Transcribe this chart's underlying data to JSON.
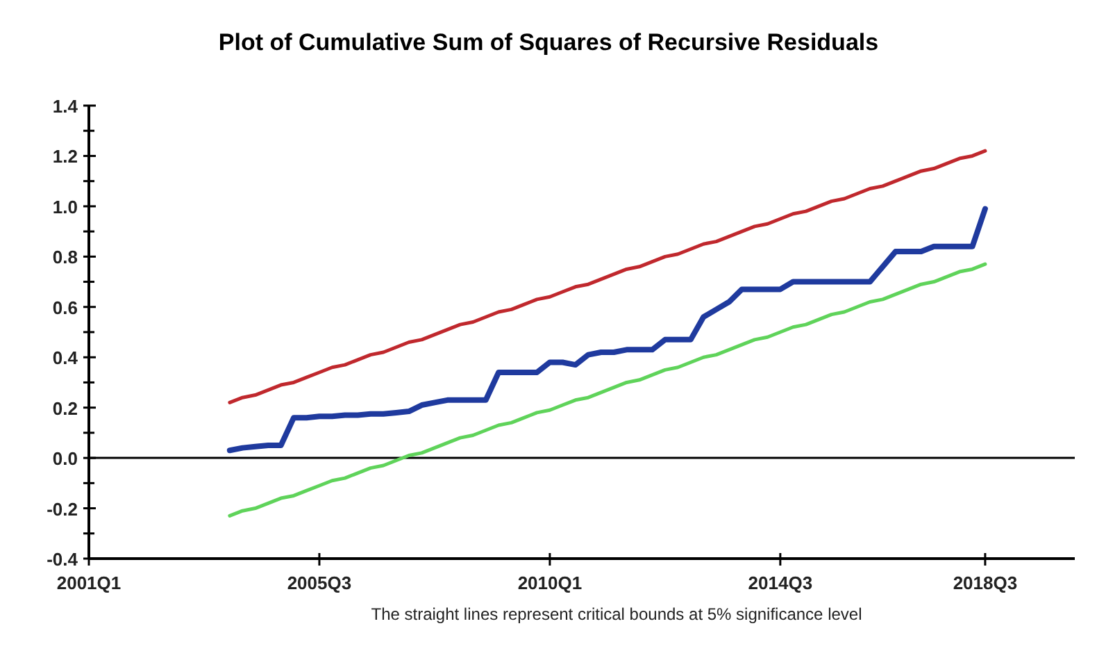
{
  "chart_data": {
    "type": "line",
    "title": "Plot of Cumulative Sum of Squares of Recursive Residuals",
    "annotations": [
      "The straight lines represent critical bounds at 5% significance level"
    ],
    "categories": [
      "2001Q1",
      null,
      null,
      null,
      null,
      null,
      null,
      null,
      null,
      null,
      null,
      null,
      null,
      null,
      null,
      null,
      null,
      null,
      "2005Q3",
      null,
      null,
      null,
      null,
      null,
      null,
      null,
      null,
      null,
      null,
      null,
      null,
      null,
      null,
      null,
      null,
      null,
      "2010Q1",
      null,
      null,
      null,
      null,
      null,
      null,
      null,
      null,
      null,
      null,
      null,
      null,
      null,
      null,
      null,
      null,
      null,
      "2014Q3",
      null,
      null,
      null,
      null,
      null,
      null,
      null,
      null,
      null,
      null,
      null,
      null,
      null,
      null,
      null,
      "2018Q3",
      null,
      null,
      null,
      null,
      null,
      null
    ],
    "series": [
      {
        "color": "#1f3a9e",
        "values": [
          null,
          null,
          null,
          null,
          null,
          null,
          null,
          null,
          null,
          null,
          null,
          0.03,
          0.04,
          0.045,
          0.05,
          0.05,
          0.16,
          0.16,
          0.165,
          0.165,
          0.17,
          0.17,
          0.175,
          0.175,
          0.18,
          0.185,
          0.21,
          0.22,
          0.23,
          0.23,
          0.23,
          0.23,
          0.34,
          0.34,
          0.34,
          0.34,
          0.38,
          0.38,
          0.37,
          0.41,
          0.42,
          0.42,
          0.43,
          0.43,
          0.43,
          0.47,
          0.47,
          0.47,
          0.56,
          0.59,
          0.62,
          0.67,
          0.67,
          0.67,
          0.67,
          0.7,
          0.7,
          0.7,
          0.7,
          0.7,
          0.7,
          0.7,
          0.76,
          0.82,
          0.82,
          0.82,
          0.84,
          0.84,
          0.84,
          0.84,
          0.99,
          null,
          null,
          null,
          null,
          null,
          null
        ]
      },
      {
        "color": "#c0282d",
        "values": [
          null,
          null,
          null,
          null,
          null,
          null,
          null,
          null,
          null,
          null,
          null,
          0.22,
          0.24,
          0.25,
          0.27,
          0.29,
          0.3,
          0.32,
          0.34,
          0.36,
          0.37,
          0.39,
          0.41,
          0.42,
          0.44,
          0.46,
          0.47,
          0.49,
          0.51,
          0.53,
          0.54,
          0.56,
          0.58,
          0.59,
          0.61,
          0.63,
          0.64,
          0.66,
          0.68,
          0.69,
          0.71,
          0.73,
          0.75,
          0.76,
          0.78,
          0.8,
          0.81,
          0.83,
          0.85,
          0.86,
          0.88,
          0.9,
          0.92,
          0.93,
          0.95,
          0.97,
          0.98,
          1.0,
          1.02,
          1.03,
          1.05,
          1.07,
          1.08,
          1.1,
          1.12,
          1.14,
          1.15,
          1.17,
          1.19,
          1.2,
          1.22,
          null,
          null,
          null,
          null,
          null,
          null
        ]
      },
      {
        "color": "#5fd35a",
        "values": [
          null,
          null,
          null,
          null,
          null,
          null,
          null,
          null,
          null,
          null,
          null,
          -0.23,
          -0.21,
          -0.2,
          -0.18,
          -0.16,
          -0.15,
          -0.13,
          -0.11,
          -0.09,
          -0.08,
          -0.06,
          -0.04,
          -0.03,
          -0.01,
          0.01,
          0.02,
          0.04,
          0.06,
          0.08,
          0.09,
          0.11,
          0.13,
          0.14,
          0.16,
          0.18,
          0.19,
          0.21,
          0.23,
          0.24,
          0.26,
          0.28,
          0.3,
          0.31,
          0.33,
          0.35,
          0.36,
          0.38,
          0.4,
          0.41,
          0.43,
          0.45,
          0.47,
          0.48,
          0.5,
          0.52,
          0.53,
          0.55,
          0.57,
          0.58,
          0.6,
          0.62,
          0.63,
          0.65,
          0.67,
          0.69,
          0.7,
          0.72,
          0.74,
          0.75,
          0.77,
          null,
          null,
          null,
          null,
          null,
          null
        ]
      }
    ],
    "ylim": [
      -0.4,
      1.4
    ],
    "yticks": [
      {
        "value": -0.4,
        "label": "-0.4"
      },
      {
        "value": -0.3,
        "label": null
      },
      {
        "value": -0.2,
        "label": "-0.2"
      },
      {
        "value": -0.1,
        "label": null
      },
      {
        "value": 0,
        "label": "0.0"
      },
      {
        "value": 0.1,
        "label": null
      },
      {
        "value": 0.2,
        "label": "0.2"
      },
      {
        "value": 0.3,
        "label": null
      },
      {
        "value": 0.4,
        "label": "0.4"
      },
      {
        "value": 0.5,
        "label": null
      },
      {
        "value": 0.6,
        "label": "0.6"
      },
      {
        "value": 0.7,
        "label": null
      },
      {
        "value": 0.8,
        "label": "0.8"
      },
      {
        "value": 0.9,
        "label": null
      },
      {
        "value": 1.0,
        "label": "1.0"
      },
      {
        "value": 1.1,
        "label": null
      },
      {
        "value": 1.2,
        "label": "1.2"
      },
      {
        "value": 1.3,
        "label": null
      },
      {
        "value": 1.4,
        "label": "1.4"
      }
    ],
    "ref_lines": [
      {
        "axis": "y",
        "value": 0,
        "color": "#000000"
      }
    ],
    "grid": false,
    "marker": "none",
    "line_style": "solid"
  }
}
